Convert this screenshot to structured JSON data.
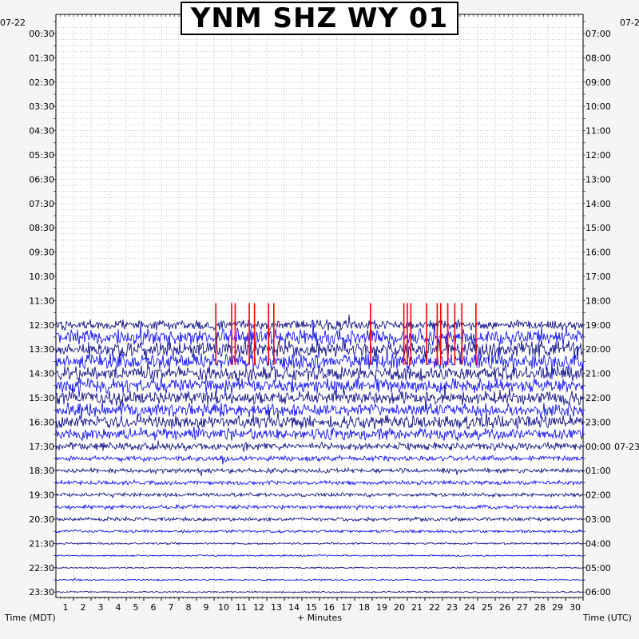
{
  "chart_data": {
    "type": "line",
    "title": "YNM SHZ WY 01",
    "xlabel": "+ Minutes",
    "left_axis_title": "Time (MDT)",
    "right_axis_title": "Time (UTC)",
    "start_date_left": "07-22",
    "start_date_right": "07-2",
    "day_change_right": "07-23",
    "xlim": [
      0,
      30
    ],
    "x_ticks": [
      "1",
      "2",
      "3",
      "4",
      "5",
      "6",
      "7",
      "8",
      "9",
      "10",
      "11",
      "12",
      "13",
      "14",
      "15",
      "16",
      "17",
      "18",
      "19",
      "20",
      "21",
      "22",
      "23",
      "24",
      "25",
      "26",
      "27",
      "28",
      "29",
      "30"
    ],
    "left_ticks": [
      "00:30",
      "01:30",
      "02:30",
      "03:30",
      "04:30",
      "05:30",
      "06:30",
      "07:30",
      "08:30",
      "09:30",
      "10:30",
      "11:30",
      "12:30",
      "13:30",
      "14:30",
      "15:30",
      "16:30",
      "17:30",
      "18:30",
      "19:30",
      "20:30",
      "21:30",
      "22:30",
      "23:30"
    ],
    "right_ticks": [
      "07:00",
      "08:00",
      "09:00",
      "10:00",
      "11:00",
      "12:00",
      "13:00",
      "14:00",
      "15:00",
      "16:00",
      "17:00",
      "18:00",
      "19:00",
      "20:00",
      "21:00",
      "22:00",
      "23:00",
      "00:00",
      "01:00",
      "02:00",
      "03:00",
      "04:00",
      "05:00",
      "06:00"
    ],
    "grid": true,
    "trace_colors": [
      "#000080",
      "#0000ff"
    ],
    "clip_color": "#ff0000",
    "first_trace_hour_mdt": "12:30",
    "trace_activity": [
      {
        "start": "12:30",
        "level": 0.6
      },
      {
        "start": "13:00",
        "level": 1.0
      },
      {
        "start": "13:30",
        "level": 1.0
      },
      {
        "start": "14:00",
        "level": 1.0
      },
      {
        "start": "14:30",
        "level": 0.95
      },
      {
        "start": "15:00",
        "level": 0.9
      },
      {
        "start": "15:30",
        "level": 0.85
      },
      {
        "start": "16:00",
        "level": 0.85
      },
      {
        "start": "16:30",
        "level": 0.8
      },
      {
        "start": "17:00",
        "level": 0.7
      },
      {
        "start": "17:30",
        "level": 0.45
      },
      {
        "start": "18:00",
        "level": 0.3
      },
      {
        "start": "18:30",
        "level": 0.25
      },
      {
        "start": "19:00",
        "level": 0.22
      },
      {
        "start": "19:30",
        "level": 0.2
      },
      {
        "start": "20:00",
        "level": 0.2
      },
      {
        "start": "20:30",
        "level": 0.18
      },
      {
        "start": "21:00",
        "level": 0.12
      },
      {
        "start": "21:30",
        "level": 0.06
      },
      {
        "start": "22:00",
        "level": 0.04
      },
      {
        "start": "22:30",
        "level": 0.03
      },
      {
        "start": "23:00",
        "level": 0.03
      },
      {
        "start": "23:30",
        "level": 0.03
      }
    ],
    "clipped_minutes": [
      9.1,
      10.0,
      10.2,
      11.0,
      11.3,
      12.1,
      12.4,
      17.9,
      19.8,
      20.0,
      20.2,
      21.1,
      21.7,
      21.9,
      22.3,
      22.7,
      23.1,
      23.9
    ]
  }
}
